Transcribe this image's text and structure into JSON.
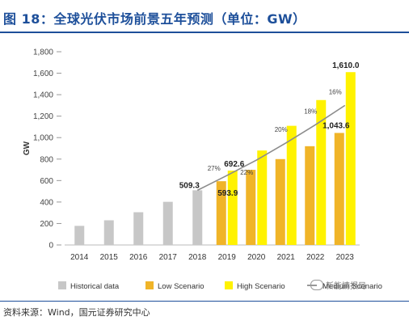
{
  "figure": {
    "title": "图 18：全球光伏市场前景五年预测（单位：GW）",
    "source": "资料来源：Wind，国元证券研究中心",
    "watermark": "新能情报局"
  },
  "colors": {
    "title_blue": "#1d4f9a",
    "historical": "#c7c7c7",
    "low": "#f0b428",
    "high": "#fff200",
    "medium_line": "#8c8c8c"
  },
  "chart_data": {
    "type": "bar",
    "title": "",
    "ylabel": "GW",
    "xlabel": "",
    "ylim": [
      0,
      1800
    ],
    "yticks": [
      0,
      200,
      400,
      600,
      800,
      1000,
      1200,
      1400,
      1600,
      1800
    ],
    "ytick_labels": [
      "0",
      "200",
      "400",
      "600",
      "800",
      "1,000",
      "1,200",
      "1,400",
      "1,600",
      "1,800"
    ],
    "grid": false,
    "legend_position": "bottom",
    "categories": [
      "2014",
      "2015",
      "2016",
      "2017",
      "2018",
      "2019",
      "2020",
      "2021",
      "2022",
      "2023"
    ],
    "series": [
      {
        "name": "Historical data",
        "type": "bar",
        "values": [
          178,
          230,
          305,
          402,
          509.3,
          null,
          null,
          null,
          null,
          null
        ]
      },
      {
        "name": "Low Scenario",
        "type": "bar",
        "values": [
          null,
          null,
          null,
          null,
          null,
          593.9,
          700,
          800,
          920,
          1043.6
        ]
      },
      {
        "name": "High Scenario",
        "type": "bar",
        "values": [
          null,
          null,
          null,
          null,
          null,
          692.6,
          880,
          1110,
          1350,
          1610.0
        ]
      },
      {
        "name": "Medium Scenario",
        "type": "line",
        "values": [
          null,
          null,
          null,
          null,
          509.3,
          647,
          790,
          950,
          1120,
          1300
        ]
      }
    ],
    "data_labels": [
      {
        "category": "2018",
        "series": "Historical data",
        "text": "509.3"
      },
      {
        "category": "2019",
        "series": "High Scenario",
        "text": "692.6"
      },
      {
        "category": "2019",
        "series": "Low Scenario",
        "text": "593.9"
      },
      {
        "category": "2023",
        "series": "High Scenario",
        "text": "1,610.0"
      },
      {
        "category": "2023",
        "series": "Low Scenario",
        "text": "1,043.6"
      }
    ],
    "growth_labels": [
      {
        "category": "2019",
        "text": "27%"
      },
      {
        "category": "2020",
        "text": "22%"
      },
      {
        "category": "2021",
        "text": "20%"
      },
      {
        "category": "2022",
        "text": "18%"
      },
      {
        "category": "2023",
        "text": "16%"
      }
    ]
  }
}
